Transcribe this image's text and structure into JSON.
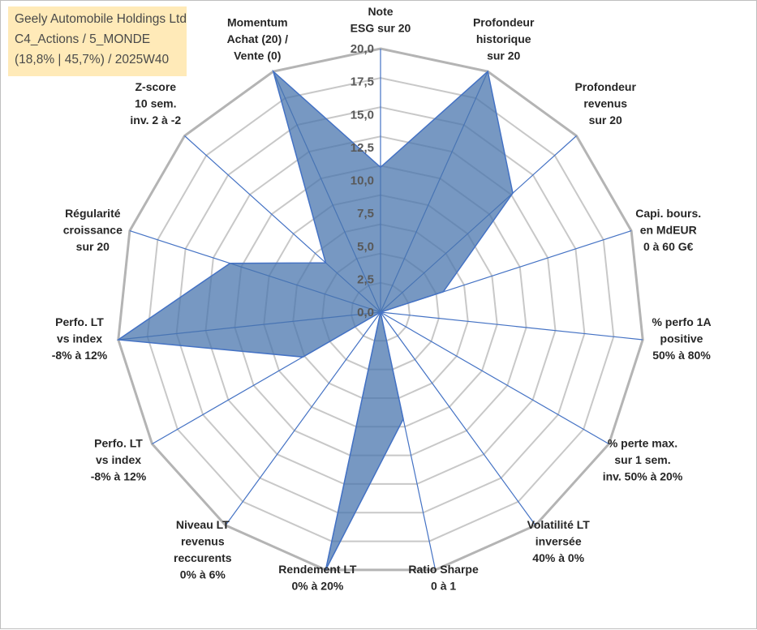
{
  "chart_data": {
    "type": "radar",
    "title": [
      "Geely Automobile Holdings Ltd",
      "C4_Actions / 5_MONDE",
      "(18,8% | 45,7%) / 2025W40"
    ],
    "rlim": [
      0,
      20
    ],
    "tick_labels": [
      "0,0",
      "2,5",
      "5,0",
      "7,5",
      "10,0",
      "12,5",
      "15,0",
      "17,5",
      "20,0"
    ],
    "colors": {
      "fill": "#4a76ad",
      "line": "#4472c4",
      "grid": "#bfbfbf",
      "ring": "#c8c8c8"
    },
    "axes": [
      {
        "label": [
          "Note",
          "ESG sur 20"
        ],
        "value": 11
      },
      {
        "label": [
          "Profondeur",
          "historique",
          "sur 20"
        ],
        "value": 20
      },
      {
        "label": [
          "Profondeur",
          "revenus",
          "sur 20"
        ],
        "value": 13.5
      },
      {
        "label": [
          "Capi. bours.",
          "en MdEUR",
          "0 à 60 G€"
        ],
        "value": 5
      },
      {
        "label": [
          "% perfo 1A",
          "positive",
          "50% à 80%"
        ],
        "value": 0
      },
      {
        "label": [
          "% perte max.",
          "sur 1 sem.",
          "inv. 50% à 20%"
        ],
        "value": 0
      },
      {
        "label": [
          "Volatilité LT",
          "inversée",
          "40% à 0%"
        ],
        "value": 0
      },
      {
        "label": [
          "Ratio Sharpe",
          "0 à 1"
        ],
        "value": 8.3
      },
      {
        "label": [
          "Rendement LT",
          "0% à 20%"
        ],
        "value": 20
      },
      {
        "label": [
          "Niveau LT",
          "revenus",
          "reccurents",
          "0% à 6%"
        ],
        "value": 0
      },
      {
        "label": [
          "Perfo. LT",
          "vs index",
          "-8% à 12%"
        ],
        "value": 6.8
      },
      {
        "label": [
          "Perfo. LT",
          "vs index",
          "-8% à 12%"
        ],
        "value": 20
      },
      {
        "label": [
          "Régularité",
          "croissance",
          "sur 20"
        ],
        "value": 12
      },
      {
        "label": [
          "Z-score",
          "10 sem.",
          "inv. 2 à -2"
        ],
        "value": 5.6
      },
      {
        "label": [
          "Momentum",
          "Achat (20) /",
          "Vente (0)"
        ],
        "value": 20
      }
    ]
  }
}
